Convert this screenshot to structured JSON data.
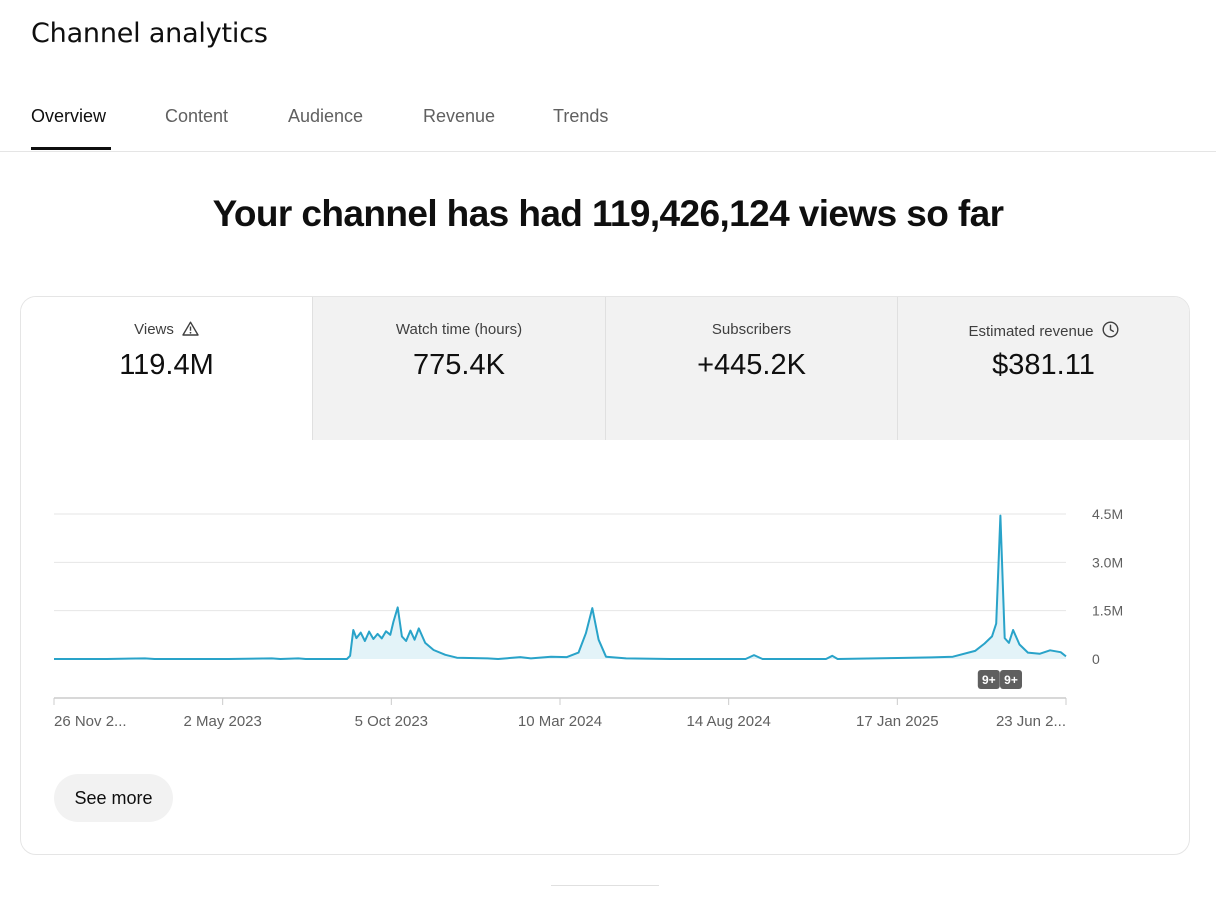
{
  "page": {
    "title": "Channel analytics"
  },
  "tabs": [
    {
      "label": "Overview",
      "active": true
    },
    {
      "label": "Content",
      "active": false
    },
    {
      "label": "Audience",
      "active": false
    },
    {
      "label": "Revenue",
      "active": false
    },
    {
      "label": "Trends",
      "active": false
    }
  ],
  "headline": "Your channel has had 119,426,124 views so far",
  "metrics": [
    {
      "label": "Views",
      "value": "119.4M",
      "icon": "warning-icon",
      "active": true
    },
    {
      "label": "Watch time (hours)",
      "value": "775.4K",
      "active": false
    },
    {
      "label": "Subscribers",
      "value": "+445.2K",
      "active": false
    },
    {
      "label": "Estimated revenue",
      "value": "$381.11",
      "icon": "clock-icon",
      "active": false
    }
  ],
  "chart_data": {
    "type": "area",
    "series": [
      {
        "points": [
          [
            "2022-11-26",
            0
          ],
          [
            "2023-01-15",
            0
          ],
          [
            "2023-02-20",
            20000
          ],
          [
            "2023-03-01",
            0
          ],
          [
            "2023-05-10",
            0
          ],
          [
            "2023-06-20",
            20000
          ],
          [
            "2023-06-28",
            0
          ],
          [
            "2023-07-15",
            20000
          ],
          [
            "2023-07-22",
            0
          ],
          [
            "2023-08-30",
            0
          ],
          [
            "2023-09-02",
            100000
          ],
          [
            "2023-09-05",
            900000
          ],
          [
            "2023-09-08",
            650000
          ],
          [
            "2023-09-12",
            820000
          ],
          [
            "2023-09-16",
            560000
          ],
          [
            "2023-09-20",
            850000
          ],
          [
            "2023-09-24",
            620000
          ],
          [
            "2023-09-28",
            780000
          ],
          [
            "2023-10-02",
            640000
          ],
          [
            "2023-10-06",
            860000
          ],
          [
            "2023-10-10",
            750000
          ],
          [
            "2023-10-13",
            1150000
          ],
          [
            "2023-10-17",
            1600000
          ],
          [
            "2023-10-21",
            700000
          ],
          [
            "2023-10-25",
            560000
          ],
          [
            "2023-10-29",
            880000
          ],
          [
            "2023-11-02",
            600000
          ],
          [
            "2023-11-06",
            950000
          ],
          [
            "2023-11-12",
            500000
          ],
          [
            "2023-11-20",
            280000
          ],
          [
            "2023-12-01",
            130000
          ],
          [
            "2023-12-12",
            40000
          ],
          [
            "2024-01-10",
            20000
          ],
          [
            "2024-01-20",
            0
          ],
          [
            "2024-02-10",
            60000
          ],
          [
            "2024-02-20",
            20000
          ],
          [
            "2024-03-10",
            70000
          ],
          [
            "2024-03-25",
            60000
          ],
          [
            "2024-04-05",
            200000
          ],
          [
            "2024-04-12",
            800000
          ],
          [
            "2024-04-18",
            1580000
          ],
          [
            "2024-04-24",
            600000
          ],
          [
            "2024-05-01",
            70000
          ],
          [
            "2024-05-20",
            20000
          ],
          [
            "2024-07-01",
            0
          ],
          [
            "2024-09-10",
            0
          ],
          [
            "2024-09-18",
            120000
          ],
          [
            "2024-09-26",
            0
          ],
          [
            "2024-11-25",
            0
          ],
          [
            "2024-12-01",
            100000
          ],
          [
            "2024-12-06",
            0
          ],
          [
            "2025-02-01",
            30000
          ],
          [
            "2025-03-05",
            50000
          ],
          [
            "2025-03-25",
            70000
          ],
          [
            "2025-04-15",
            250000
          ],
          [
            "2025-04-24",
            480000
          ],
          [
            "2025-05-01",
            700000
          ],
          [
            "2025-05-05",
            1100000
          ],
          [
            "2025-05-09",
            4450000
          ],
          [
            "2025-05-13",
            650000
          ],
          [
            "2025-05-17",
            500000
          ],
          [
            "2025-05-21",
            900000
          ],
          [
            "2025-05-27",
            450000
          ],
          [
            "2025-06-04",
            200000
          ],
          [
            "2025-06-15",
            160000
          ],
          [
            "2025-06-25",
            270000
          ],
          [
            "2025-07-05",
            210000
          ],
          [
            "2025-07-10",
            80000
          ]
        ]
      }
    ],
    "x_ticks": [
      "26 Nov 2...",
      "2 May 2023",
      "5 Oct 2023",
      "10 Mar 2024",
      "14 Aug 2024",
      "17 Jan 2025",
      "23 Jun 2..."
    ],
    "x_range": [
      "2022-11-26",
      "2025-07-10"
    ],
    "y_ticks": [
      "0",
      "1.5M",
      "3.0M",
      "4.5M"
    ],
    "y_range": [
      0,
      4500000
    ],
    "grid": true,
    "markers": [
      {
        "label": "9+",
        "date": "2025-04-28"
      },
      {
        "label": "9+",
        "date": "2025-05-19"
      }
    ],
    "line_color": "#29a3c9",
    "fill_color": "#e3f3f8"
  },
  "actions": {
    "see_more_label": "See more"
  }
}
